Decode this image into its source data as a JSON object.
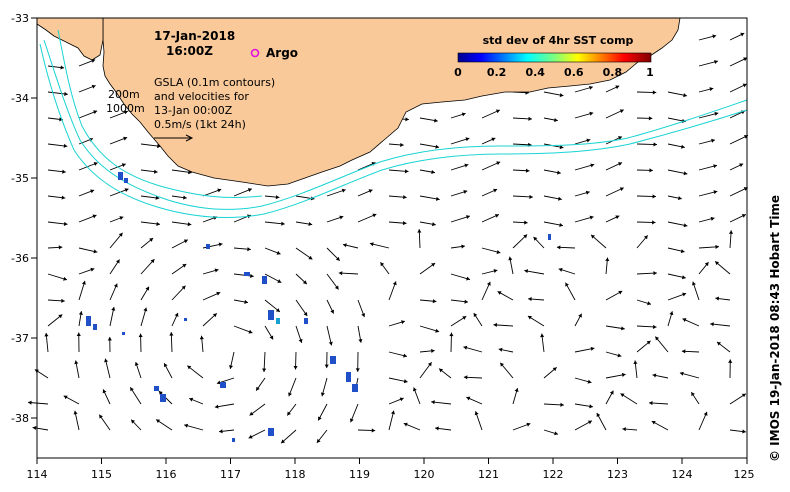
{
  "map": {
    "date": "17-Jan-2018",
    "time": "16:00Z",
    "argo_label": "Argo",
    "gsla_lines": [
      "GSLA (0.1m contours)",
      "and velocities for",
      "13-Jan 00:00Z",
      "0.5m/s (1kt 24h)"
    ],
    "depth_labels": [
      "200m",
      "1000m"
    ],
    "colorbar": {
      "title": "std dev of 4hr SST comp",
      "ticks": [
        "0",
        "0.2",
        "0.4",
        "0.6",
        "0.8",
        "1"
      ],
      "range": [
        0,
        1
      ]
    },
    "credit": "© IMOS 19-Jan-2018 08:43 Hobart Time",
    "x_ticks": [
      "114",
      "115",
      "116",
      "117",
      "118",
      "119",
      "120",
      "121",
      "122",
      "123",
      "124",
      "125"
    ],
    "y_ticks": [
      "-33",
      "-34",
      "-35",
      "-36",
      "-37",
      "-38"
    ],
    "lon_range": [
      114,
      125
    ],
    "lat_range": [
      -38.5,
      -33
    ],
    "colors": {
      "land": "#f9c99a",
      "shelf_contour": "#1ad3d3",
      "frame": "#000000",
      "argo": "#e010e0"
    }
  }
}
